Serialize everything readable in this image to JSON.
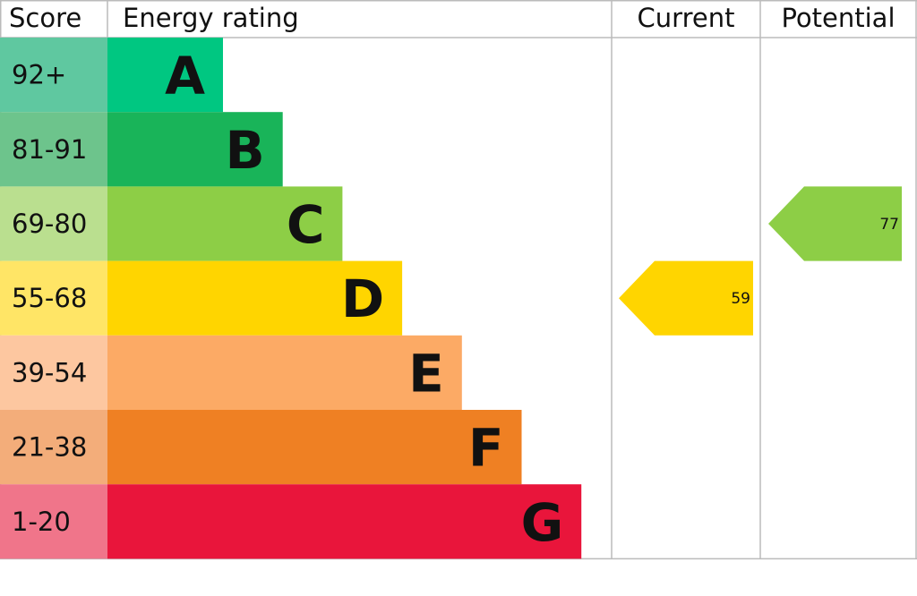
{
  "chart_data": {
    "type": "bar",
    "headers": {
      "score": "Score",
      "rating": "Energy rating",
      "current": "Current",
      "potential": "Potential"
    },
    "bands": [
      {
        "letter": "A",
        "range": "92+",
        "color": "#00c781",
        "score_color": "#5fc8a0"
      },
      {
        "letter": "B",
        "range": "81-91",
        "color": "#19b459",
        "score_color": "#6dc48c"
      },
      {
        "letter": "C",
        "range": "69-80",
        "color": "#8dce46",
        "score_color": "#badf8f"
      },
      {
        "letter": "D",
        "range": "55-68",
        "color": "#ffd500",
        "score_color": "#ffe566"
      },
      {
        "letter": "E",
        "range": "39-54",
        "color": "#fcaa65",
        "score_color": "#fdc7a0"
      },
      {
        "letter": "F",
        "range": "21-38",
        "color": "#ef8023",
        "score_color": "#f3ad7a"
      },
      {
        "letter": "G",
        "range": "1-20",
        "color": "#e9153b",
        "score_color": "#f0758a"
      }
    ],
    "current": {
      "value": 59,
      "band": "D"
    },
    "potential": {
      "value": 77,
      "band": "C"
    }
  }
}
